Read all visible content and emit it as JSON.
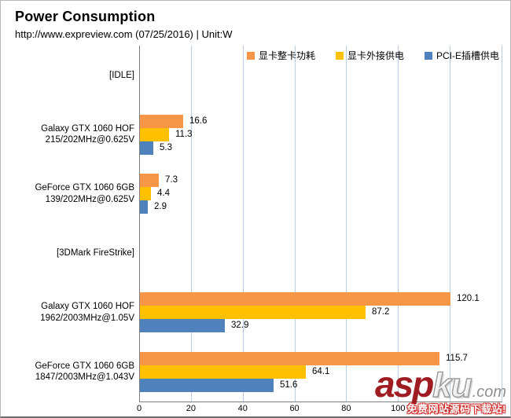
{
  "header": {
    "title": "Power Consumption",
    "subtitle": "http://www.expreview.com (07/25/2016) | Unit:W"
  },
  "chart_data": {
    "type": "bar",
    "orientation": "horizontal",
    "title": "Power Consumption",
    "subtitle": "http://www.expreview.com (07/25/2016) | Unit:W",
    "unit": "W",
    "xlim": [
      0,
      140
    ],
    "xticks": [
      0,
      20,
      40,
      60,
      80,
      100,
      120
    ],
    "grid": true,
    "legend_position": "top-right",
    "series": [
      {
        "name": "显卡整卡功耗",
        "color": "#F79646"
      },
      {
        "name": "显卡外接供电",
        "color": "#FFC000"
      },
      {
        "name": "PCI-E插槽供电",
        "color": "#4F81BD"
      }
    ],
    "groups": [
      {
        "label_lines": [
          "[IDLE]"
        ],
        "values": null
      },
      {
        "label_lines": [
          "Galaxy GTX 1060 HOF",
          "215/202MHz@0.625V"
        ],
        "values": [
          16.6,
          11.3,
          5.3
        ]
      },
      {
        "label_lines": [
          "GeForce GTX 1060 6GB",
          "139/202MHz@0.625V"
        ],
        "values": [
          7.3,
          4.4,
          2.9
        ]
      },
      {
        "label_lines": [
          "[3DMark FireStrike]"
        ],
        "values": null
      },
      {
        "label_lines": [
          "Galaxy GTX 1060 HOF",
          "1962/2003MHz@1.05V"
        ],
        "values": [
          120.1,
          87.2,
          32.9
        ]
      },
      {
        "label_lines": [
          "GeForce GTX 1060 6GB",
          "1847/2003MHz@1.043V"
        ],
        "values": [
          115.7,
          64.1,
          51.6
        ]
      }
    ],
    "colors": {
      "gridline": "#b9cde4",
      "axis": "#808080",
      "value_label": "#000000"
    }
  },
  "watermark": {
    "part1": "asp",
    "part2": "ku",
    "part3": ".com",
    "tagline": "免费网站源码下载站!",
    "red": "#9f1d22"
  }
}
